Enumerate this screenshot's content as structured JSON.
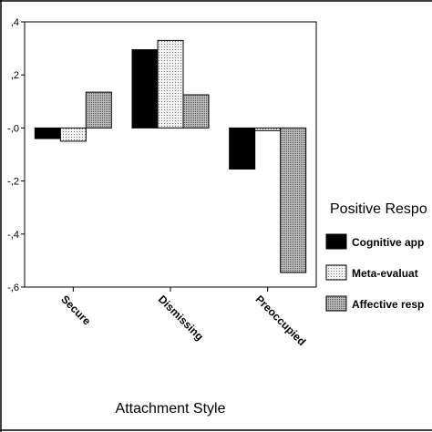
{
  "chart_data": {
    "type": "bar",
    "categories": [
      "Secure",
      "Dismissing",
      "Preoccupied"
    ],
    "series": [
      {
        "name": "Cognitive app",
        "values": [
          -0.04,
          0.295,
          -0.155
        ],
        "color": "#000000",
        "pattern": "solid"
      },
      {
        "name": "Meta-evaluat",
        "values": [
          -0.05,
          0.33,
          -0.01
        ],
        "color": "#e6e6e6",
        "pattern": "fine-dots"
      },
      {
        "name": "Affective resp",
        "values": [
          0.135,
          0.125,
          -0.545
        ],
        "color": "#a8a8a8",
        "pattern": "dense-dots"
      }
    ],
    "ylim": [
      -0.6,
      0.4
    ],
    "yticks": [
      0.4,
      0.2,
      0.0,
      -0.2,
      -0.4,
      -0.6
    ],
    "ytick_labels": [
      ",4",
      ",2",
      "-,0",
      "-,2",
      "-,4",
      "-,6"
    ],
    "xlabel": "Attachment Style",
    "ylabel": "",
    "legend_title": "Positive Respo",
    "legend_position": "right",
    "grid": false
  }
}
